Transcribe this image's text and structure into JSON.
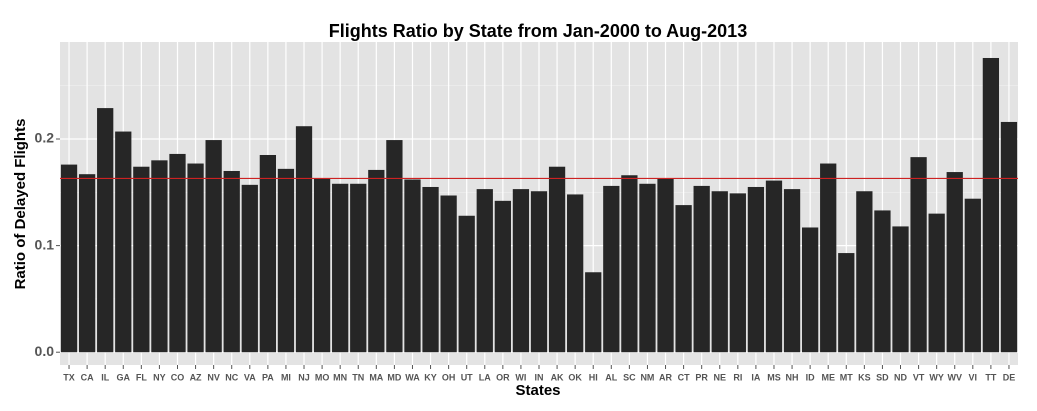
{
  "chart_data": {
    "type": "bar",
    "title": "Flights Ratio by State from Jan-2000 to Aug-2013",
    "x_label": "States",
    "y_label": "Ratio of Delayed Flights",
    "categories": [
      "TX",
      "CA",
      "IL",
      "GA",
      "FL",
      "NY",
      "CO",
      "AZ",
      "NV",
      "NC",
      "VA",
      "PA",
      "MI",
      "NJ",
      "MO",
      "MN",
      "TN",
      "MA",
      "MD",
      "WA",
      "KY",
      "OH",
      "UT",
      "LA",
      "OR",
      "WI",
      "IN",
      "AK",
      "OK",
      "HI",
      "AL",
      "SC",
      "NM",
      "AR",
      "CT",
      "PR",
      "NE",
      "RI",
      "IA",
      "MS",
      "NH",
      "ID",
      "ME",
      "MT",
      "KS",
      "SD",
      "ND",
      "VT",
      "WY",
      "WV",
      "VI",
      "TT",
      "DE"
    ],
    "values": [
      0.176,
      0.167,
      0.229,
      0.207,
      0.174,
      0.18,
      0.186,
      0.177,
      0.199,
      0.17,
      0.157,
      0.185,
      0.172,
      0.212,
      0.163,
      0.158,
      0.158,
      0.171,
      0.199,
      0.162,
      0.155,
      0.147,
      0.128,
      0.153,
      0.142,
      0.153,
      0.151,
      0.174,
      0.148,
      0.075,
      0.156,
      0.166,
      0.158,
      0.163,
      0.138,
      0.156,
      0.151,
      0.149,
      0.155,
      0.161,
      0.153,
      0.117,
      0.177,
      0.093,
      0.151,
      0.133,
      0.118,
      0.183,
      0.13,
      0.169,
      0.144,
      0.276,
      0.216
    ],
    "color": "#262626",
    "reference_line": {
      "value": 0.163,
      "color": "#cc2222"
    },
    "ylim": [
      -0.012,
      0.291
    ],
    "yticks": [
      {
        "value": 0,
        "label": "0.0"
      },
      0.1,
      0.2
    ],
    "grid": true
  }
}
